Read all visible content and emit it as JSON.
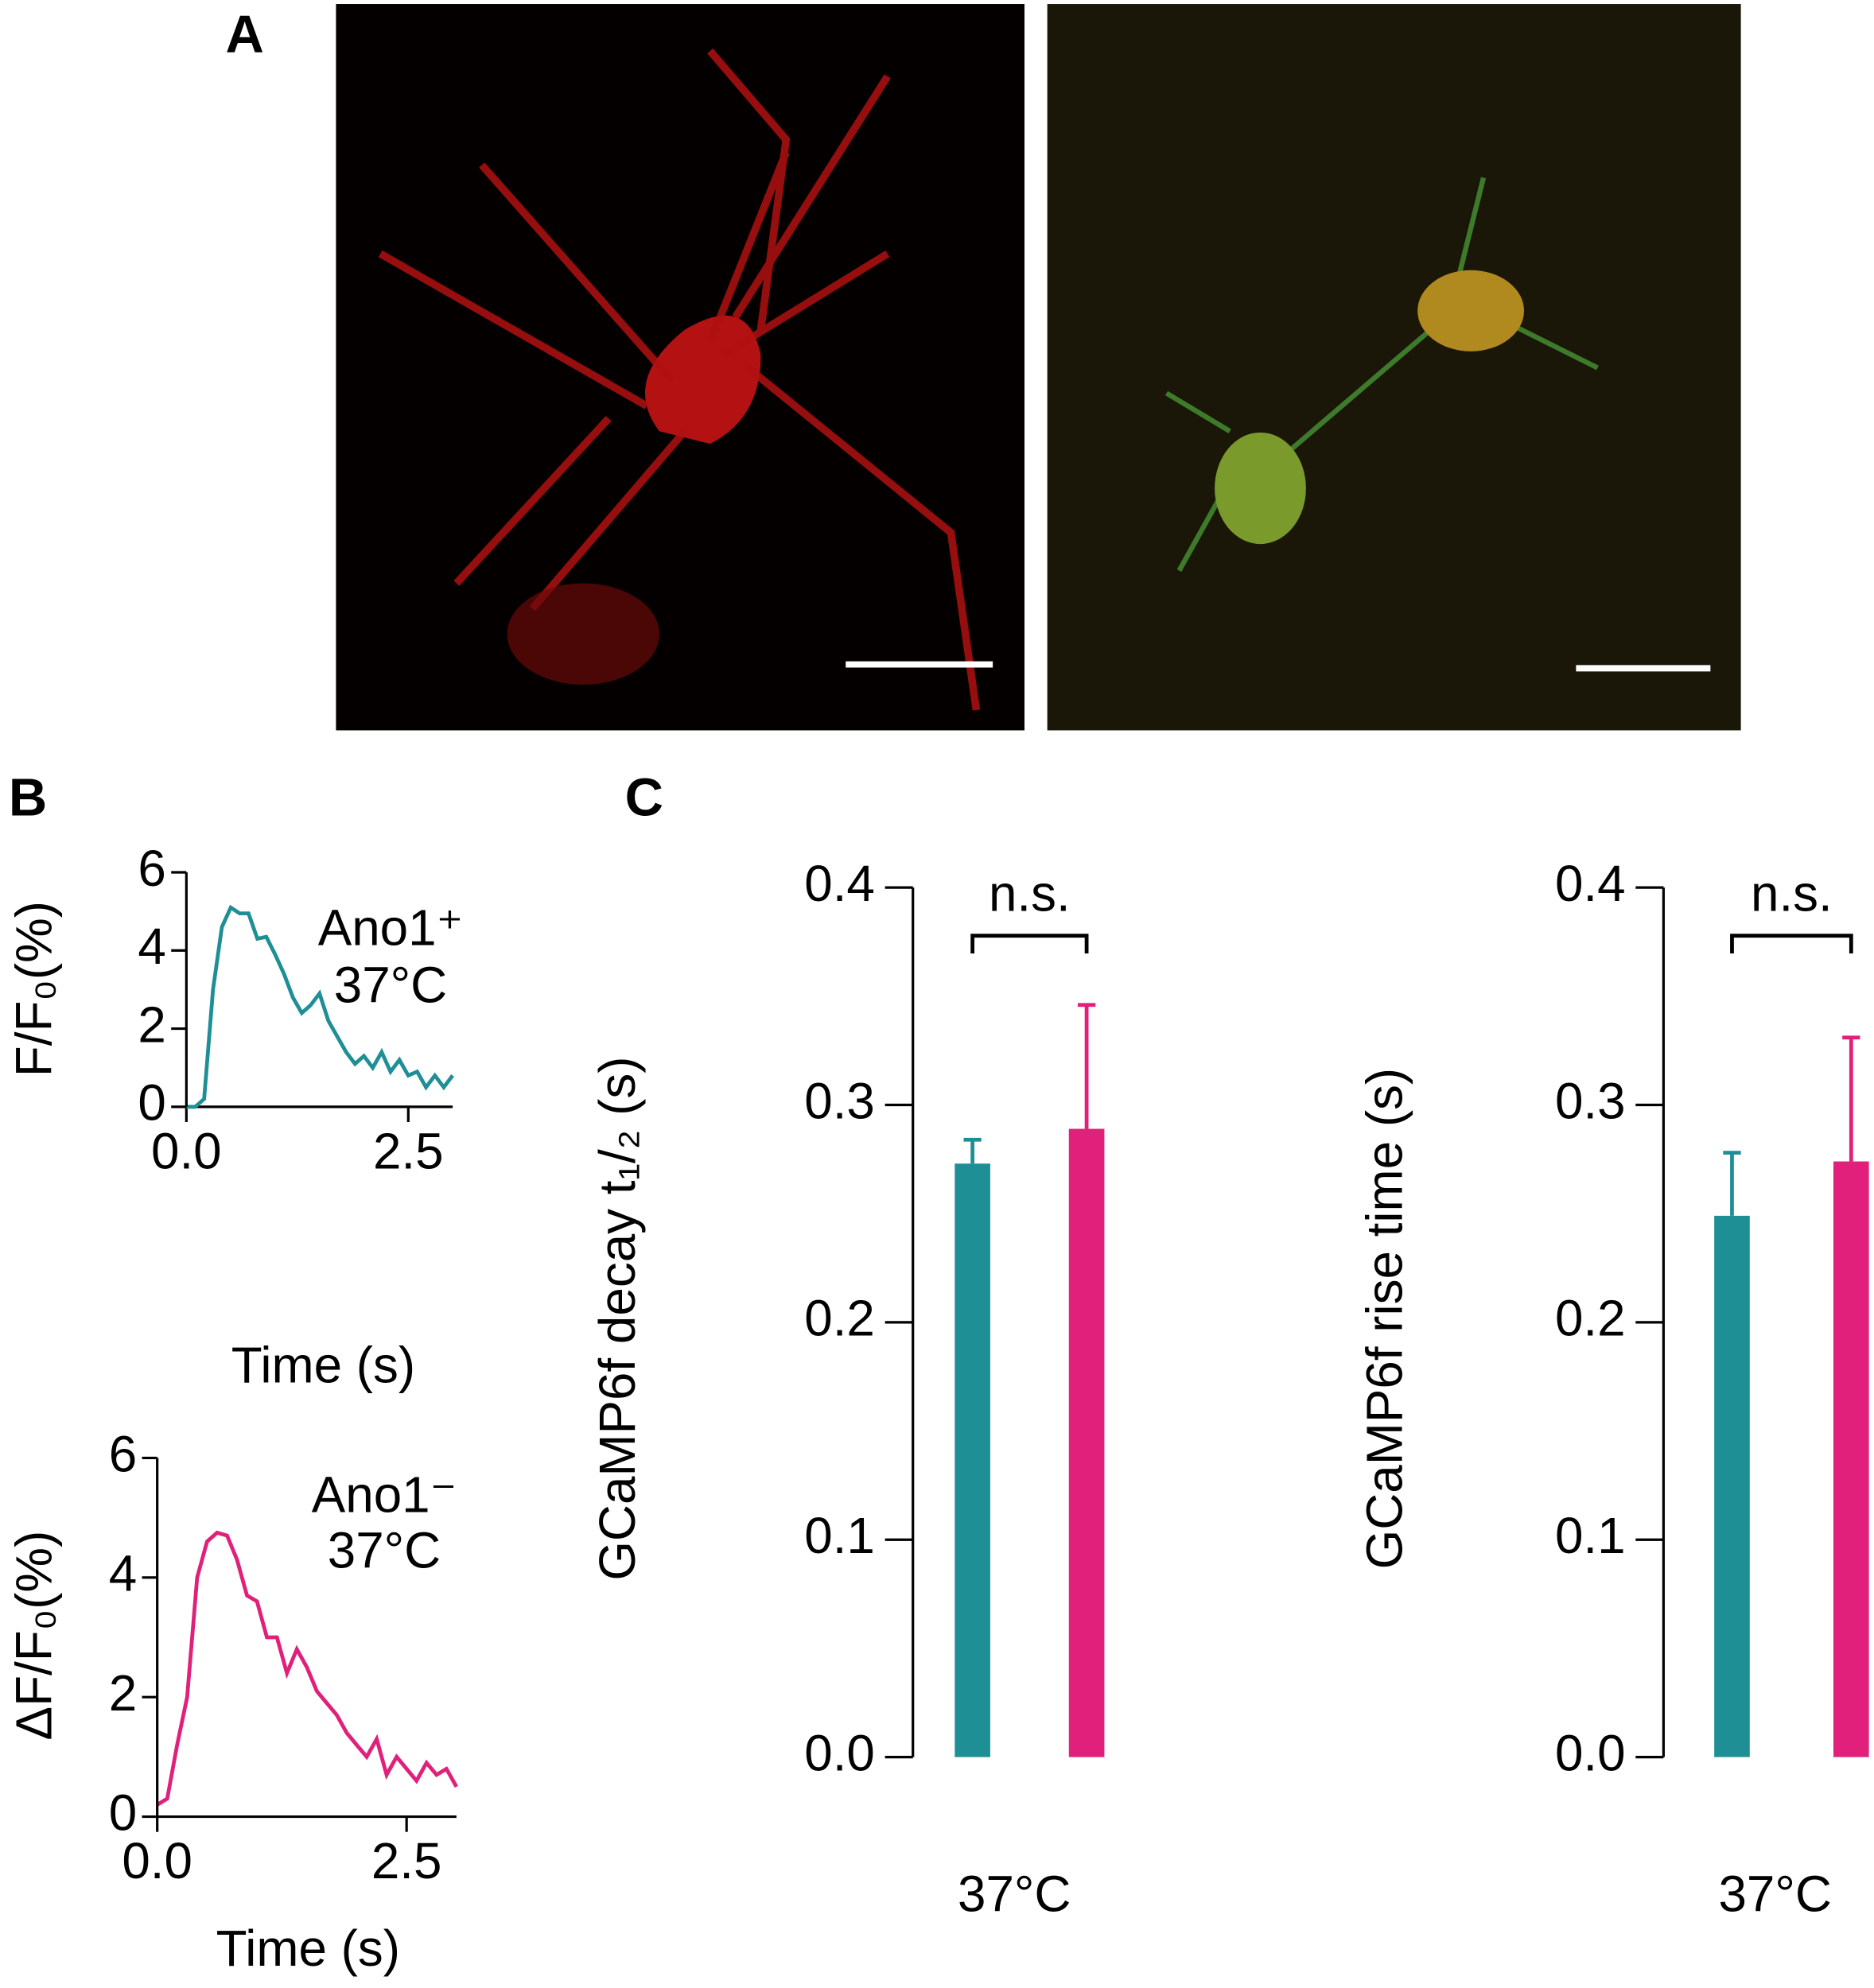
{
  "panel_labels": [
    "A",
    "B",
    "C"
  ],
  "chart_data": [
    {
      "type": "line",
      "ylabel": "F/F₀(%)",
      "xlabel": "Time (s)",
      "annotations": [
        "Ano1⁺",
        "37°C"
      ],
      "x": [
        0.0,
        0.1,
        0.2,
        0.3,
        0.4,
        0.5,
        0.6,
        0.7,
        0.8,
        0.9,
        1.0,
        1.1,
        1.2,
        1.3,
        1.4,
        1.5,
        1.6,
        1.7,
        1.8,
        1.9,
        2.0,
        2.1,
        2.2,
        2.3,
        2.4,
        2.5,
        2.6,
        2.7,
        2.8,
        2.9,
        3.0
      ],
      "values": [
        0.0,
        0.0,
        0.2,
        3.0,
        4.6,
        5.1,
        4.95,
        4.95,
        4.3,
        4.35,
        3.9,
        3.4,
        2.8,
        2.4,
        2.6,
        2.9,
        2.2,
        1.8,
        1.4,
        1.1,
        1.3,
        1.0,
        1.4,
        0.9,
        1.2,
        0.8,
        0.9,
        0.5,
        0.8,
        0.5,
        0.8
      ],
      "color": "#1f8f96",
      "xlim": [
        0,
        3
      ],
      "xticks": [
        {
          "value": 0,
          "label": "0.0"
        },
        2.5
      ],
      "ylim": [
        0,
        6
      ],
      "yticks": [
        0,
        2,
        4,
        6
      ]
    },
    {
      "type": "line",
      "ylabel": "ΔF/F₀(%)",
      "xlabel": "Time (s)",
      "annotations": [
        "Ano1⁻",
        "37°C"
      ],
      "x": [
        0.0,
        0.1,
        0.2,
        0.3,
        0.4,
        0.5,
        0.6,
        0.7,
        0.8,
        0.9,
        1.0,
        1.1,
        1.2,
        1.3,
        1.4,
        1.5,
        1.6,
        1.7,
        1.8,
        1.9,
        2.0,
        2.1,
        2.2,
        2.3,
        2.4,
        2.5,
        2.6,
        2.7,
        2.8,
        2.9,
        3.0
      ],
      "values": [
        0.2,
        0.3,
        1.2,
        2.0,
        4.0,
        4.6,
        4.75,
        4.7,
        4.3,
        3.7,
        3.6,
        3.0,
        3.0,
        2.4,
        2.8,
        2.5,
        2.1,
        1.9,
        1.7,
        1.4,
        1.2,
        1.0,
        1.3,
        0.7,
        1.0,
        0.8,
        0.6,
        0.9,
        0.7,
        0.8,
        0.5
      ],
      "color": "#e0207a",
      "xlim": [
        0,
        3
      ],
      "xticks": [
        {
          "value": 0,
          "label": "0.0"
        },
        2.5
      ],
      "ylim": [
        0,
        6
      ],
      "yticks": [
        0,
        2,
        4,
        6
      ]
    },
    {
      "type": "bar",
      "ylabel": "GCaMP6f decay t₁/₂ (s)",
      "xlabel": "37°C",
      "annotation": "n.s.",
      "values": [
        0.273,
        0.289
      ],
      "errors": [
        0.011,
        0.057
      ],
      "colors": [
        "#1f8f96",
        "#e0207a"
      ],
      "ylim": [
        0,
        0.4
      ],
      "yticks": [
        {
          "value": 0,
          "label": "0.0"
        },
        0.1,
        0.2,
        0.3,
        0.4
      ]
    },
    {
      "type": "bar",
      "ylabel": "GCaMP6f rise time (s)",
      "xlabel": "37°C",
      "annotation": "n.s.",
      "values": [
        0.249,
        0.274
      ],
      "errors": [
        0.029,
        0.057
      ],
      "colors": [
        "#1f8f96",
        "#e0207a"
      ],
      "ylim": [
        0,
        0.4
      ],
      "yticks": [
        {
          "value": 0,
          "label": "0.0"
        },
        0.1,
        0.2,
        0.3,
        0.4
      ]
    }
  ]
}
